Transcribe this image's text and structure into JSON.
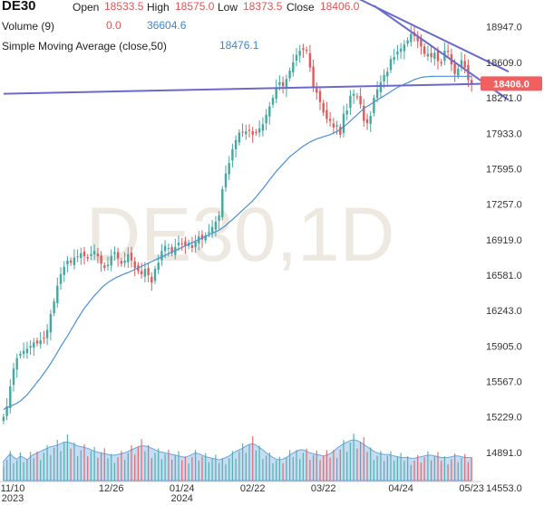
{
  "header": {
    "symbol": "DE30",
    "open_label": "Open",
    "open_value": "18533.5",
    "high_label": "High",
    "high_value": "18575.0",
    "low_label": "Low",
    "low_value": "18373.5",
    "close_label": "Close",
    "close_value": "18406.0",
    "volume_label": "Volume (9)",
    "volume_value": "0.0",
    "volume_ma_value": "36604.6",
    "sma_label": "Simple Moving Average (close,50)",
    "sma_value": "18476.1"
  },
  "watermark": "DE30,1D",
  "colors": {
    "up": "#43a8a0",
    "down": "#e05a5a",
    "sma": "#4a8fd6",
    "trendline": "#6a6acc",
    "volume": "#aecdee",
    "price_tag": "#f06060"
  },
  "chart_data": {
    "type": "candlestick",
    "title": "DE30,1D",
    "y_axis": {
      "ticks": [
        18947.0,
        18609.0,
        18271.0,
        17933.0,
        17595.0,
        17257.0,
        16919.0,
        16581.0,
        16243.0,
        15905.0,
        15567.0,
        15229.0,
        14891.0,
        14553.0
      ],
      "range": [
        14450,
        19100
      ]
    },
    "x_axis": {
      "ticks": [
        {
          "label": "11/10",
          "sublabel": "2023",
          "index": 0
        },
        {
          "label": "12/26",
          "sublabel": "",
          "index": 32
        },
        {
          "label": "01/24",
          "sublabel": "2024",
          "index": 53
        },
        {
          "label": "02/22",
          "sublabel": "",
          "index": 74
        },
        {
          "label": "03/22",
          "sublabel": "",
          "index": 95
        },
        {
          "label": "04/24",
          "sublabel": "",
          "index": 118
        },
        {
          "label": "05/23",
          "sublabel": "",
          "index": 139
        }
      ]
    },
    "current_price": 18406.0,
    "series": {
      "close": [
        15230,
        15330,
        15520,
        15690,
        15790,
        15830,
        15860,
        15880,
        15905,
        15940,
        15930,
        15960,
        15980,
        16060,
        16210,
        16330,
        16480,
        16590,
        16660,
        16720,
        16700,
        16750,
        16760,
        16790,
        16760,
        16740,
        16780,
        16810,
        16760,
        16690,
        16650,
        16680,
        16760,
        16800,
        16740,
        16690,
        16720,
        16780,
        16720,
        16650,
        16620,
        16590,
        16640,
        16580,
        16510,
        16640,
        16700,
        16810,
        16860,
        16840,
        16790,
        16850,
        16890,
        16880,
        16860,
        16890,
        16840,
        16900,
        16950,
        16920,
        16960,
        16990,
        17040,
        17090,
        17150,
        17400,
        17550,
        17650,
        17780,
        17870,
        17940,
        17940,
        17950,
        17960,
        17920,
        17940,
        17980,
        18020,
        18110,
        18190,
        18270,
        18370,
        18420,
        18380,
        18450,
        18530,
        18610,
        18680,
        18720,
        18730,
        18720,
        18560,
        18380,
        18320,
        18230,
        18130,
        18070,
        18050,
        17990,
        18010,
        17920,
        18120,
        18150,
        18290,
        18310,
        18280,
        18210,
        18050,
        18030,
        18100,
        18270,
        18350,
        18420,
        18490,
        18520,
        18640,
        18660,
        18710,
        18740,
        18780,
        18820,
        18880,
        18860,
        18810,
        18760,
        18690,
        18690,
        18660,
        18700,
        18620,
        18600,
        18720,
        18710,
        18590,
        18500,
        18550,
        18630,
        18560,
        18440,
        18406
      ],
      "sma50": [
        15300,
        15320,
        15330,
        15345,
        15360,
        15380,
        15410,
        15440,
        15480,
        15520,
        15560,
        15600,
        15645,
        15690,
        15740,
        15790,
        15845,
        15900,
        15950,
        16000,
        16055,
        16110,
        16165,
        16215,
        16265,
        16305,
        16345,
        16385,
        16420,
        16455,
        16485,
        16510,
        16530,
        16550,
        16565,
        16580,
        16595,
        16605,
        16620,
        16635,
        16650,
        16665,
        16680,
        16695,
        16710,
        16725,
        16740,
        16755,
        16770,
        16785,
        16800,
        16815,
        16830,
        16845,
        16860,
        16875,
        16890,
        16905,
        16920,
        16935,
        16950,
        16965,
        16980,
        16995,
        17010,
        17030,
        17055,
        17085,
        17110,
        17140,
        17170,
        17200,
        17230,
        17260,
        17290,
        17325,
        17365,
        17405,
        17445,
        17490,
        17530,
        17570,
        17605,
        17640,
        17675,
        17710,
        17735,
        17760,
        17785,
        17810,
        17830,
        17850,
        17865,
        17880,
        17890,
        17900,
        17910,
        17920,
        17935,
        17950,
        17970,
        17995,
        18020,
        18050,
        18080,
        18110,
        18140,
        18170,
        18190,
        18210,
        18230,
        18250,
        18270,
        18290,
        18310,
        18330,
        18350,
        18370,
        18385,
        18400,
        18415,
        18430,
        18445,
        18455,
        18465,
        18470,
        18473,
        18475,
        18476,
        18476.1,
        18476.1,
        18476.1,
        18476.1,
        18476.1,
        18476.1,
        18476.1,
        18476.1,
        18476.1,
        18476.1,
        18476.1
      ],
      "volume": [
        0.25,
        0.3,
        0.35,
        0.3,
        0.28,
        0.32,
        0.3,
        0.27,
        0.31,
        0.34,
        0.36,
        0.38,
        0.4,
        0.42,
        0.44,
        0.45,
        0.46,
        0.48,
        0.5,
        0.5,
        0.49,
        0.47,
        0.45,
        0.44,
        0.43,
        0.42,
        0.4,
        0.38,
        0.37,
        0.36,
        0.35,
        0.34,
        0.33,
        0.33,
        0.34,
        0.35,
        0.36,
        0.38,
        0.4,
        0.42,
        0.44,
        0.45,
        0.45,
        0.44,
        0.42,
        0.4,
        0.38,
        0.37,
        0.36,
        0.35,
        0.34,
        0.33,
        0.32,
        0.31,
        0.3,
        0.32,
        0.34,
        0.36,
        0.35,
        0.33,
        0.31,
        0.3,
        0.29,
        0.28,
        0.27,
        0.28,
        0.3,
        0.32,
        0.35,
        0.38,
        0.4,
        0.42,
        0.45,
        0.47,
        0.48,
        0.46,
        0.43,
        0.4,
        0.36,
        0.33,
        0.3,
        0.28,
        0.27,
        0.28,
        0.3,
        0.33,
        0.36,
        0.38,
        0.4,
        0.4,
        0.38,
        0.36,
        0.35,
        0.34,
        0.33,
        0.32,
        0.33,
        0.35,
        0.38,
        0.42,
        0.45,
        0.48,
        0.5,
        0.52,
        0.53,
        0.52,
        0.5,
        0.47,
        0.44,
        0.41,
        0.38,
        0.36,
        0.35,
        0.34,
        0.34,
        0.33,
        0.32,
        0.31,
        0.3,
        0.3,
        0.3,
        0.29,
        0.29,
        0.3,
        0.31,
        0.32,
        0.33,
        0.33,
        0.32,
        0.31,
        0.3,
        0.3,
        0.3,
        0.31,
        0.32,
        0.32,
        0.31,
        0.3,
        0.3,
        0.3
      ]
    },
    "trendlines": [
      {
        "name": "horizontal-support",
        "from": {
          "index": 0,
          "price": 18310
        },
        "to": {
          "index": 150,
          "price": 18410
        }
      },
      {
        "name": "channel-upper",
        "from": {
          "index": 100,
          "price": 19300
        },
        "to": {
          "index": 150,
          "price": 18520
        }
      },
      {
        "name": "channel-lower",
        "from": {
          "index": 110,
          "price": 19150
        },
        "to": {
          "index": 150,
          "price": 18250
        }
      }
    ]
  }
}
